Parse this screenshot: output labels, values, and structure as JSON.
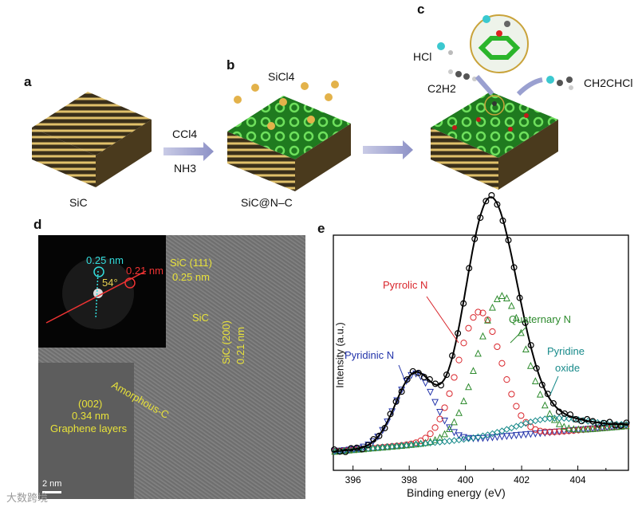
{
  "panels": {
    "a": {
      "letter": "a",
      "label": "SiC"
    },
    "b": {
      "letter": "b",
      "label": "SiC@N–C",
      "reagent_top": "SiCl4",
      "arrow_top": "CCl4",
      "arrow_bottom": "NH3"
    },
    "c": {
      "letter": "c",
      "hcl": "HCl",
      "c2h2": "C2H2",
      "product": "CH2CHCl"
    },
    "d": {
      "letter": "d",
      "fft_labels": [
        "0.25 nm",
        "0.21 nm",
        "54°"
      ],
      "annotations": [
        "SiC (111)",
        "0.25 nm",
        "SiC",
        "SiC (200)",
        "0.21 nm",
        "Amorphous-C",
        "(002)",
        "0.34 nm",
        "Graphene layers"
      ],
      "scalebar": "2 nm"
    },
    "e": {
      "letter": "e"
    }
  },
  "watermark": "大数跨境",
  "colors": {
    "pyridinic": "#2233aa",
    "pyrrolic": "#d9262c",
    "quaternary": "#2e8b2e",
    "oxide": "#178a8a",
    "total": "#000000"
  },
  "chart_data": {
    "type": "line",
    "xlabel": "Binding energy (eV)",
    "ylabel": "Intensity (a.u.)",
    "xlim": [
      395.3,
      405.8
    ],
    "ylim": [
      0,
      1
    ],
    "x_ticks": [
      396,
      398,
      400,
      402,
      404
    ],
    "x_tick_labels": [
      "396",
      "398",
      "400",
      "402",
      "404"
    ],
    "y_ticks_shown": false,
    "baseline": [
      [
        395.3,
        0.08
      ],
      [
        405.8,
        0.19
      ]
    ],
    "series": [
      {
        "name": "Pyridinic N",
        "center": 398.2,
        "height": 0.3,
        "fwhm": 1.6,
        "marker": "triangle-down",
        "color": "#2233aa"
      },
      {
        "name": "Pyrrolic N",
        "center": 400.5,
        "height": 0.54,
        "fwhm": 1.8,
        "marker": "circle",
        "color": "#d9262c"
      },
      {
        "name": "Quaternary N",
        "center": 401.3,
        "height": 0.6,
        "fwhm": 2.0,
        "marker": "triangle-up",
        "color": "#2e8b2e"
      },
      {
        "name": "Pyridine oxide",
        "center": 403.0,
        "height": 0.06,
        "fwhm": 3.0,
        "marker": "diamond",
        "color": "#178a8a"
      }
    ]
  }
}
